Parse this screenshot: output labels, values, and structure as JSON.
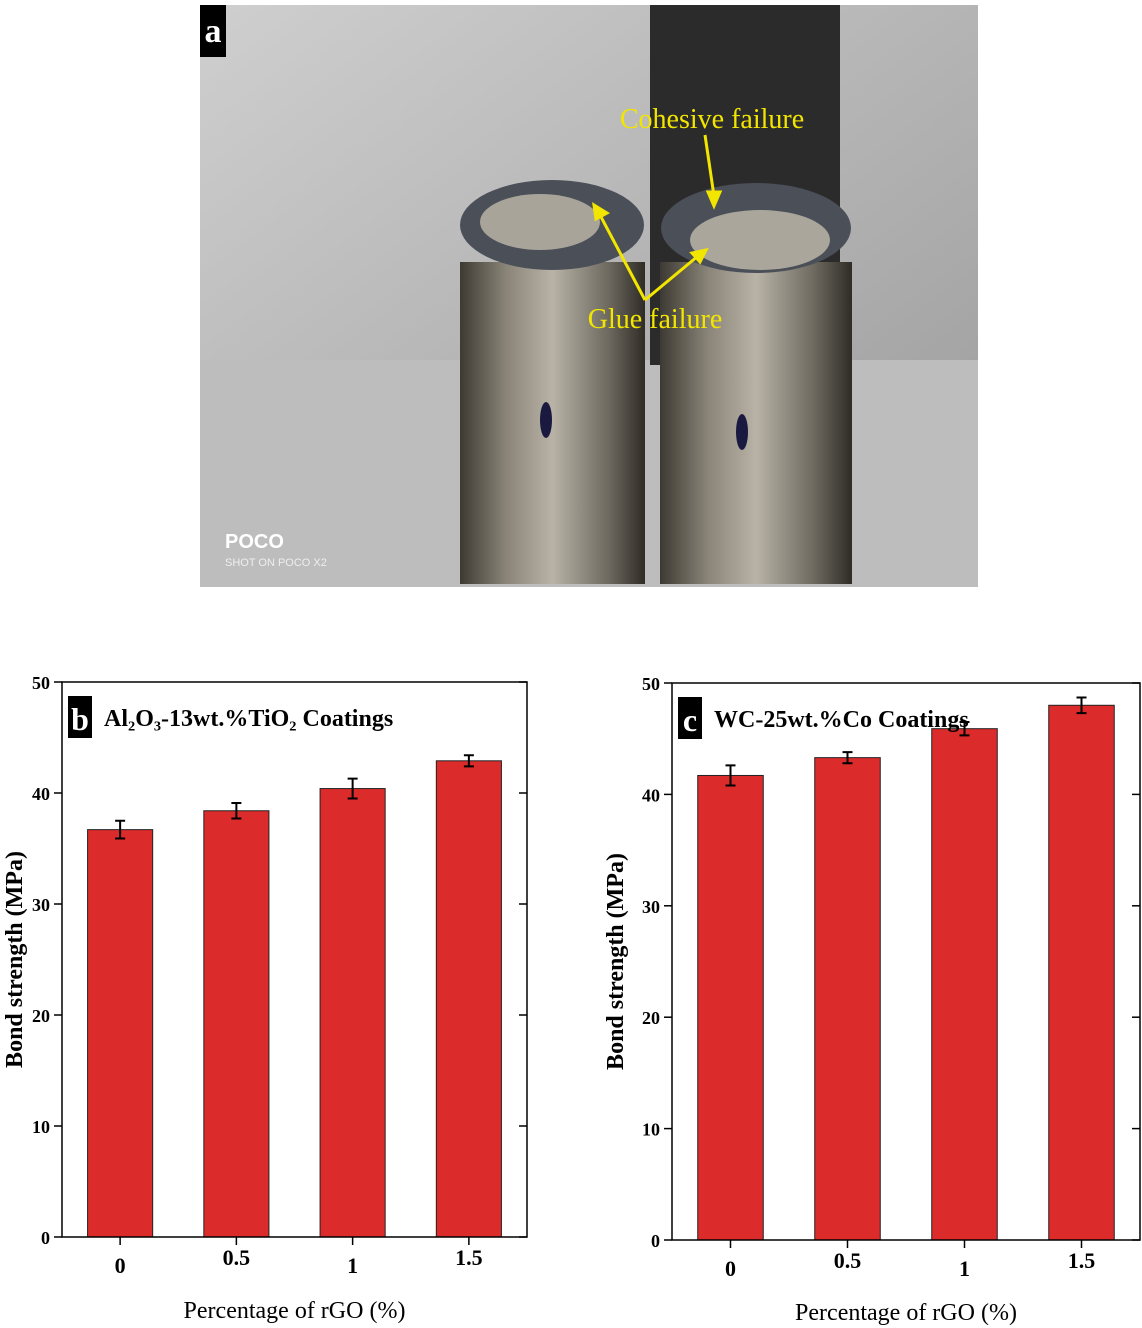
{
  "photo": {
    "panel_label": "a",
    "annotations": [
      "Cohesive failure",
      "Glue failure"
    ],
    "watermark": "POCO",
    "watermark_sub": "SHOT ON POCO X2"
  },
  "chart_data": [
    {
      "type": "bar",
      "panel_label": "b",
      "title": "Al₂O₃-13wt.%TiO₂ Coatings",
      "x_label": "Percentage of rGO (%)",
      "y_label": "Bond strength (MPa)",
      "categories": [
        "0",
        "0.5",
        "1",
        "1.5"
      ],
      "values": [
        36.7,
        38.4,
        40.4,
        42.9
      ],
      "errors": [
        0.8,
        0.7,
        0.9,
        0.5
      ],
      "color": "#dc2b2b",
      "ylim": [
        0,
        50
      ],
      "yticks": [
        0,
        10,
        20,
        30,
        40,
        50
      ]
    },
    {
      "type": "bar",
      "panel_label": "c",
      "title": "WC-25wt.%Co Coatings",
      "x_label": "Percentage of rGO (%)",
      "y_label": "Bond strength (MPa)",
      "categories": [
        "0",
        "0.5",
        "1",
        "1.5"
      ],
      "values": [
        41.7,
        43.3,
        45.9,
        48.0
      ],
      "errors": [
        0.9,
        0.5,
        0.6,
        0.7
      ],
      "color": "#dc2b2b",
      "ylim": [
        0,
        50
      ],
      "yticks": [
        0,
        10,
        20,
        30,
        40,
        50
      ]
    }
  ]
}
